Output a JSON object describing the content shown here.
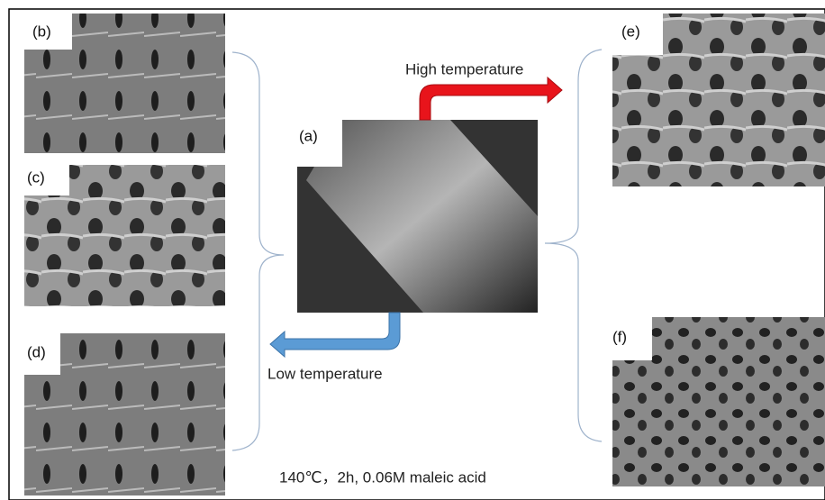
{
  "panels": [
    {
      "label": "(a)"
    },
    {
      "label": "(b)"
    },
    {
      "label": "(c)"
    },
    {
      "label": "(d)"
    },
    {
      "label": "(e)"
    },
    {
      "label": "(f)"
    }
  ],
  "arrows": {
    "high": "High temperature",
    "low": "Low temperature"
  },
  "caption": "140℃，2h, 0.06M maleic acid"
}
